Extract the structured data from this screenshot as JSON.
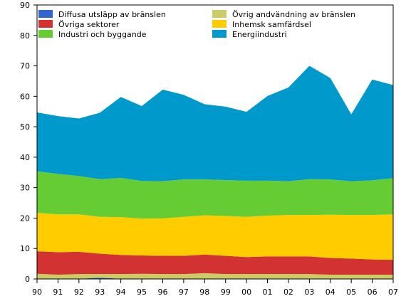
{
  "chart_data": {
    "type": "area",
    "stacked": true,
    "categories": [
      "90",
      "91",
      "92",
      "93",
      "94",
      "95",
      "96",
      "97",
      "98",
      "99",
      "00",
      "01",
      "02",
      "03",
      "04",
      "05",
      "06",
      "07"
    ],
    "ylim": [
      0,
      90
    ],
    "yticks": [
      "0",
      "10",
      "20",
      "30",
      "40",
      "50",
      "60",
      "70",
      "80",
      "90"
    ],
    "grid": false,
    "legend_position": "top-left, inside plot, two columns",
    "series": [
      {
        "name": "Diffusa utsläpp av bränslen",
        "color": "#3366cc",
        "values": [
          0.1,
          0.1,
          0.1,
          0.4,
          0.1,
          0.1,
          0.1,
          0.1,
          0.1,
          0.1,
          0.1,
          0.1,
          0.1,
          0.1,
          0.1,
          0.1,
          0.1,
          0.1
        ]
      },
      {
        "name": "Övrig andvändning av bränslen",
        "color": "#cccc66",
        "values": [
          1.6,
          1.3,
          1.5,
          1.2,
          1.5,
          1.6,
          1.5,
          1.5,
          1.8,
          1.5,
          1.5,
          1.5,
          1.5,
          1.5,
          1.3,
          1.3,
          1.3,
          1.3
        ]
      },
      {
        "name": "Övriga sektorer",
        "color": "#d23232",
        "values": [
          7.4,
          7.4,
          7.3,
          6.7,
          6.3,
          6.0,
          6.0,
          6.0,
          6.1,
          6.0,
          5.6,
          5.8,
          5.8,
          5.8,
          5.5,
          5.3,
          5.0,
          4.9
        ]
      },
      {
        "name": "Inhemsk samfärdsel",
        "color": "#ffcc00",
        "values": [
          12.6,
          12.4,
          12.3,
          12.1,
          12.4,
          12.1,
          12.3,
          12.8,
          12.9,
          13.1,
          13.2,
          13.4,
          13.6,
          13.6,
          14.2,
          14.3,
          14.6,
          14.9
        ]
      },
      {
        "name": "Industri och byggande",
        "color": "#66cc33",
        "values": [
          13.7,
          13.3,
          12.6,
          12.4,
          12.9,
          12.4,
          12.2,
          12.3,
          11.8,
          11.8,
          11.9,
          11.5,
          11.1,
          11.8,
          11.6,
          11.1,
          11.4,
          11.9
        ]
      },
      {
        "name": "Energiindustri",
        "color": "#0099cc",
        "values": [
          19.3,
          19.0,
          18.9,
          21.8,
          26.6,
          24.6,
          30.1,
          27.8,
          24.7,
          24.1,
          22.6,
          27.8,
          30.8,
          37.2,
          33.3,
          22.0,
          33.1,
          30.6
        ]
      }
    ],
    "legend_order": [
      "Diffusa utsläpp av bränslen",
      "Övrig andvändning av bränslen",
      "Övriga sektorer",
      "Inhemsk samfärdsel",
      "Industri och byggande",
      "Energiindustri"
    ]
  }
}
